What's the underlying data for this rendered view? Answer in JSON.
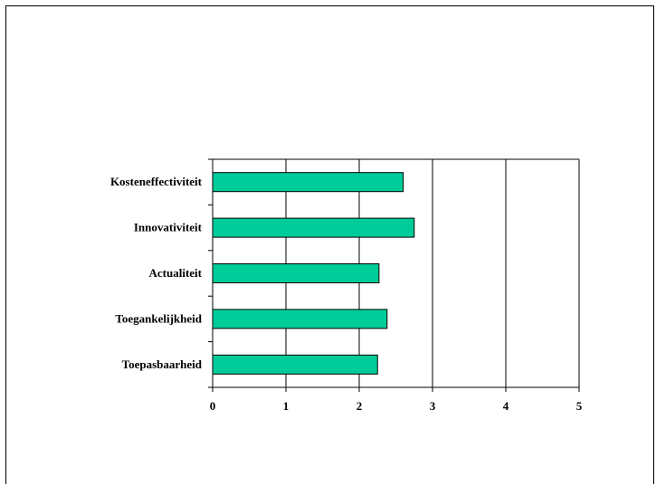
{
  "chart_data": {
    "type": "bar",
    "orientation": "horizontal",
    "categories": [
      "Kosteneffectiviteit",
      "Innovativiteit",
      "Actualiteit",
      "Toegankelijkheid",
      "Toepasbaarheid"
    ],
    "values": [
      2.6,
      2.75,
      2.27,
      2.38,
      2.25
    ],
    "xlim": [
      0,
      5
    ],
    "xticks": [
      "0",
      "1",
      "2",
      "3",
      "4",
      "5"
    ],
    "grid": true,
    "bar_color": "#00CC99",
    "title": "",
    "xlabel": "",
    "ylabel": ""
  }
}
